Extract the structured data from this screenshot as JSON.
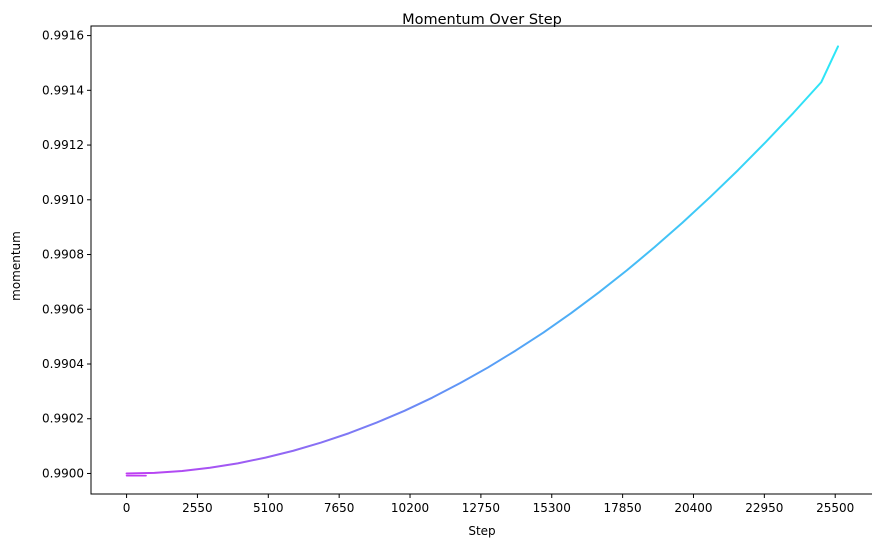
{
  "chart_data": {
    "type": "line",
    "title": "Momentum Over Step",
    "xlabel": "Step",
    "ylabel": "momentum",
    "xlim": [
      -1280,
      26860
    ],
    "ylim": [
      0.989925,
      0.991635
    ],
    "xticks": [
      0,
      2550,
      5100,
      7650,
      10200,
      12750,
      15300,
      17850,
      20400,
      22950,
      25500
    ],
    "xtick_labels": [
      "0",
      "2550",
      "5100",
      "7650",
      "10200",
      "12750",
      "15300",
      "17850",
      "20400",
      "22950",
      "25500"
    ],
    "yticks": [
      0.99,
      0.9902,
      0.9904,
      0.9906,
      0.9908,
      0.991,
      0.9912,
      0.9914,
      0.9916
    ],
    "ytick_labels": [
      "0.9900",
      "0.9902",
      "0.9904",
      "0.9906",
      "0.9908",
      "0.9910",
      "0.9912",
      "0.9914",
      "0.9916"
    ],
    "grid": false,
    "legend": false,
    "colormap": [
      "#c03cf2",
      "#5a9af6",
      "#2de6f7"
    ],
    "series": [
      {
        "x": [
          0,
          1000,
          2000,
          3000,
          4000,
          5000,
          6000,
          7000,
          8000,
          9000,
          10000,
          11000,
          12000,
          13000,
          14000,
          15000,
          16000,
          17000,
          18000,
          19000,
          20000,
          21000,
          22000,
          23000,
          24000,
          25000,
          25600
        ],
        "values": [
          0.99,
          0.990002,
          0.990009,
          0.990021,
          0.990037,
          0.990058,
          0.990083,
          0.990113,
          0.990147,
          0.990186,
          0.990229,
          0.990277,
          0.99033,
          0.990387,
          0.990449,
          0.990515,
          0.990586,
          0.990662,
          0.990742,
          0.990827,
          0.990916,
          0.99101,
          0.991108,
          0.991211,
          0.991318,
          0.99143,
          0.9915605
        ]
      },
      {
        "x": [
          0,
          700
        ],
        "values": [
          0.989992,
          0.989992
        ]
      }
    ]
  }
}
